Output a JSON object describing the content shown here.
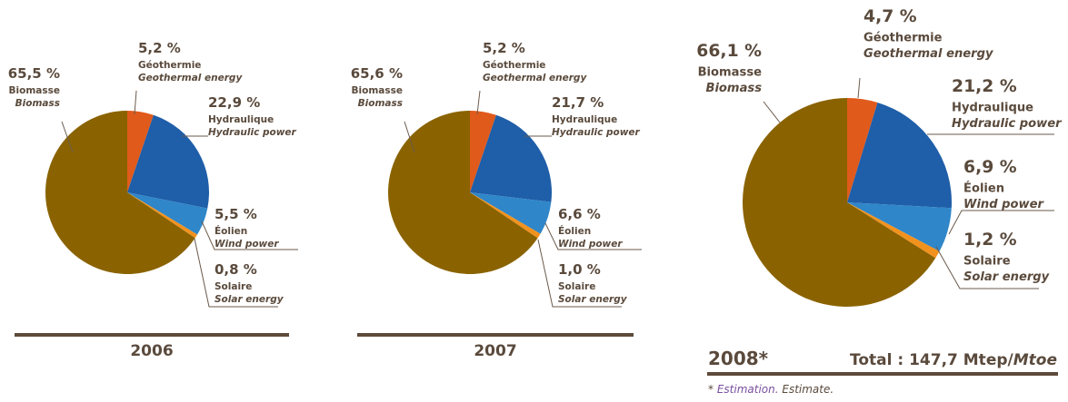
{
  "colors": {
    "biomass": "#8a6300",
    "geothermal": "#e05a1c",
    "hydraulic": "#1f5ea8",
    "wind": "#2f86c8",
    "solar": "#f2921e",
    "text": "#5a4a3c",
    "bar": "#5e4a3a"
  },
  "chart_data": [
    {
      "type": "pie",
      "title": "2006",
      "slices": [
        {
          "key": "geothermal",
          "value": 5.2,
          "pct_label": "5,2 %",
          "fr": "Géothermie",
          "en": "Geothermal energy"
        },
        {
          "key": "hydraulic",
          "value": 22.9,
          "pct_label": "22,9 %",
          "fr": "Hydraulique",
          "en": "Hydraulic power"
        },
        {
          "key": "wind",
          "value": 5.5,
          "pct_label": "5,5 %",
          "fr": "Éolien",
          "en": "Wind power"
        },
        {
          "key": "solar",
          "value": 0.8,
          "pct_label": "0,8 %",
          "fr": "Solaire",
          "en": "Solar energy"
        },
        {
          "key": "biomass",
          "value": 65.5,
          "pct_label": "65,5 %",
          "fr": "Biomasse",
          "en": "Biomass"
        }
      ]
    },
    {
      "type": "pie",
      "title": "2007",
      "slices": [
        {
          "key": "geothermal",
          "value": 5.2,
          "pct_label": "5,2 %",
          "fr": "Géothermie",
          "en": "Geothermal energy"
        },
        {
          "key": "hydraulic",
          "value": 21.7,
          "pct_label": "21,7 %",
          "fr": "Hydraulique",
          "en": "Hydraulic power"
        },
        {
          "key": "wind",
          "value": 6.6,
          "pct_label": "6,6 %",
          "fr": "Éolien",
          "en": "Wind power"
        },
        {
          "key": "solar",
          "value": 1.0,
          "pct_label": "1,0 %",
          "fr": "Solaire",
          "en": "Solar energy"
        },
        {
          "key": "biomass",
          "value": 65.6,
          "pct_label": "65,6 %",
          "fr": "Biomasse",
          "en": "Biomass"
        }
      ]
    },
    {
      "type": "pie",
      "title": "2008*",
      "total_label": "Total : 147,7 Mtep/",
      "total_unit_en": "Mtoe",
      "footnote_mark": "* ",
      "footnote_fr": "Estimation.",
      "footnote_en": " Estimate.",
      "slices": [
        {
          "key": "geothermal",
          "value": 4.7,
          "pct_label": "4,7 %",
          "fr": "Géothermie",
          "en": "Geothermal energy"
        },
        {
          "key": "hydraulic",
          "value": 21.2,
          "pct_label": "21,2 %",
          "fr": "Hydraulique",
          "en": "Hydraulic power"
        },
        {
          "key": "wind",
          "value": 6.9,
          "pct_label": "6,9 %",
          "fr": "Éolien",
          "en": "Wind power"
        },
        {
          "key": "solar",
          "value": 1.2,
          "pct_label": "1,2 %",
          "fr": "Solaire",
          "en": "Solar energy"
        },
        {
          "key": "biomass",
          "value": 66.1,
          "pct_label": "66,1 %",
          "fr": "Biomasse",
          "en": "Biomass"
        }
      ]
    }
  ]
}
